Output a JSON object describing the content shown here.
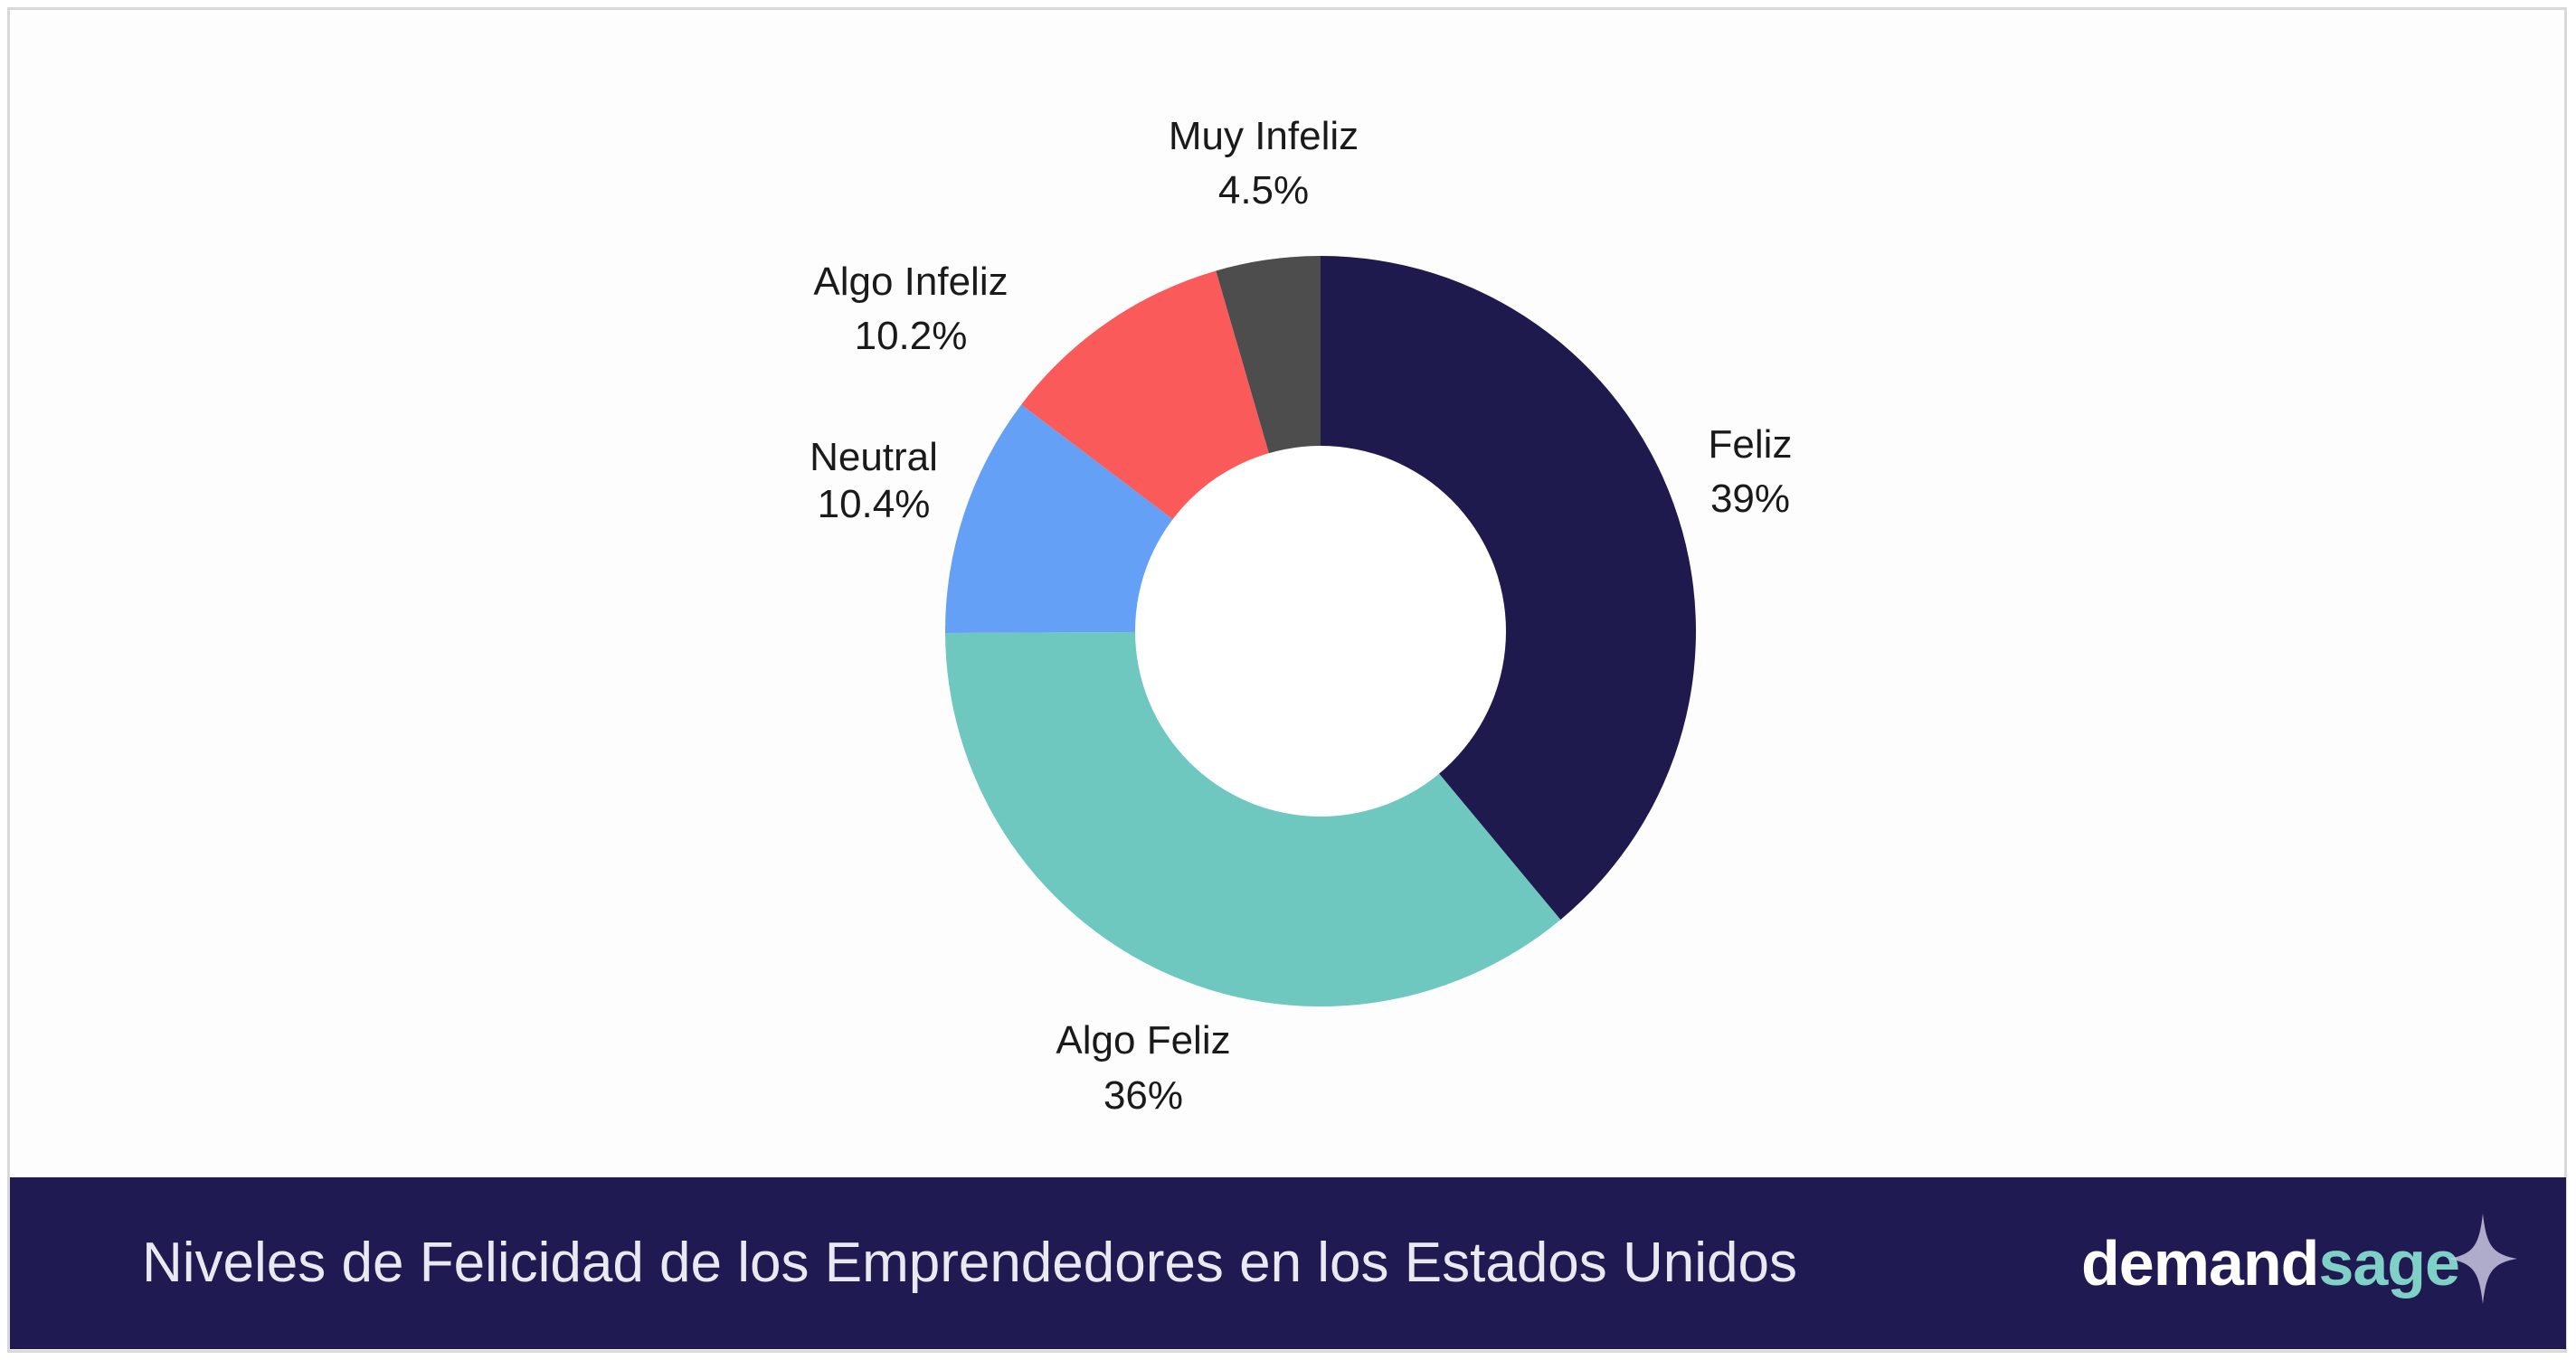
{
  "chart_data": {
    "type": "pie",
    "variant": "donut",
    "title": "Niveles de Felicidad de los Emprendedores en los Estados Unidos",
    "slices": [
      {
        "label": "Feliz",
        "value": 39,
        "display": "39%",
        "color": "#1f1a4d"
      },
      {
        "label": "Algo Feliz",
        "value": 36,
        "display": "36%",
        "color": "#6fc8c0"
      },
      {
        "label": "Neutral",
        "value": 10.4,
        "display": "10.4%",
        "color": "#64a0f5"
      },
      {
        "label": "Algo Infeliz",
        "value": 10.2,
        "display": "10.2%",
        "color": "#fa5a5a"
      },
      {
        "label": "Muy Infeliz",
        "value": 4.5,
        "display": "4.5%",
        "color": "#4d4d4d"
      }
    ]
  },
  "footer": {
    "title": "Niveles de Felicidad de los Emprendedores en los Estados Unidos",
    "brand_part1": "demand",
    "brand_part2": "sage",
    "brand_icon": "sparkle-icon"
  },
  "colors": {
    "footer_bg": "#201a52",
    "brand_accent": "#7fd1c7"
  }
}
